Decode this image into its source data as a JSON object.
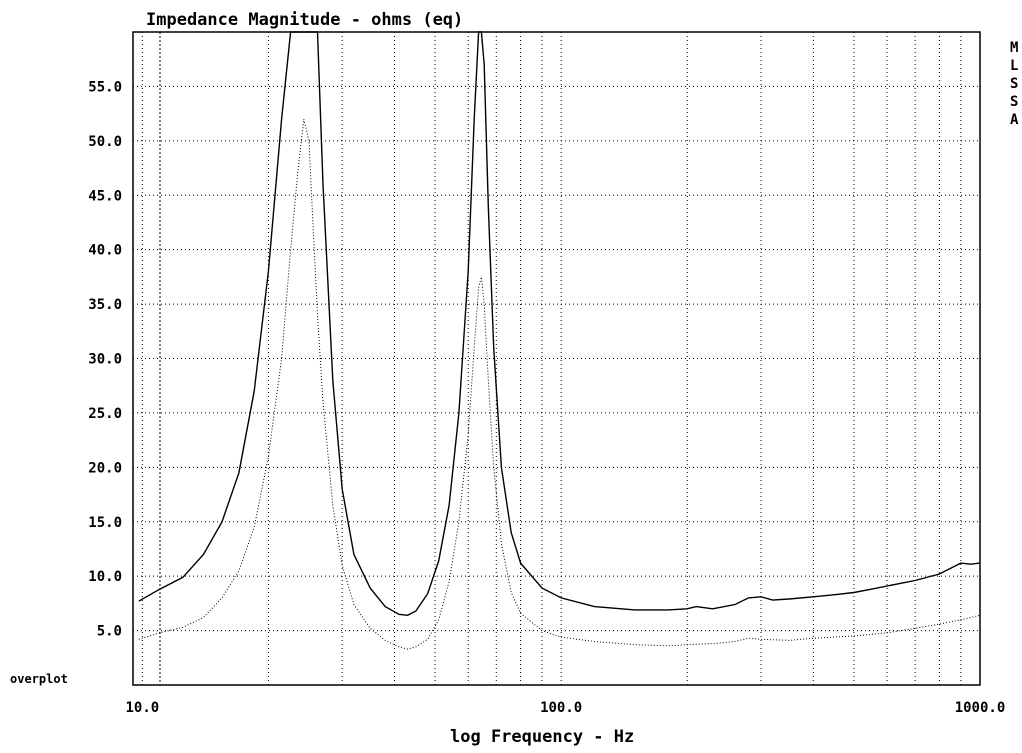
{
  "chart_data": {
    "type": "line",
    "title": "Impedance Magnitude - ohms (eq)",
    "xlabel": "log Frequency - Hz",
    "ylabel": "",
    "xscale": "log",
    "xlim": [
      9.5,
      1000
    ],
    "ylim": [
      0,
      60
    ],
    "grid": true,
    "xticks": [
      10,
      100,
      1000
    ],
    "xtick_labels": [
      "10.0",
      "100.0",
      "1000.0"
    ],
    "yticks": [
      5,
      10,
      15,
      20,
      25,
      30,
      35,
      40,
      45,
      50,
      55
    ],
    "ytick_labels": [
      "5.0",
      "10.0",
      "15.0",
      "20.0",
      "25.0",
      "30.0",
      "35.0",
      "40.0",
      "45.0",
      "50.0",
      "55.0"
    ],
    "bottom_label": "overplot",
    "side_legend": [
      "M",
      "L",
      "S",
      "S",
      "A"
    ],
    "series": [
      {
        "style": "solid",
        "color": "#000000",
        "x": [
          9.8,
          11,
          12.5,
          14,
          15.5,
          17,
          18.5,
          20,
          21.5,
          22.6,
          23.5,
          24.3,
          25,
          25.5,
          26.2,
          27,
          28.5,
          30,
          32,
          35,
          38,
          41,
          43,
          45,
          48,
          51,
          54,
          57,
          60,
          62,
          63.5,
          64.5,
          65.5,
          67,
          69,
          72,
          76,
          80,
          90,
          100,
          120,
          150,
          180,
          200,
          210,
          230,
          260,
          280,
          300,
          320,
          350,
          400,
          450,
          500,
          550,
          600,
          700,
          800,
          900,
          950,
          1000
        ],
        "y": [
          7.7,
          8.8,
          9.9,
          12,
          15,
          19.5,
          27,
          38,
          52,
          60,
          60,
          60,
          60,
          60,
          60,
          46,
          28,
          18,
          12,
          8.9,
          7.2,
          6.5,
          6.4,
          6.8,
          8.4,
          11.4,
          16.5,
          25,
          38,
          52,
          60,
          60,
          57,
          44,
          31,
          20,
          14,
          11.2,
          8.9,
          8,
          7.2,
          6.9,
          6.9,
          7,
          7.2,
          7,
          7.4,
          8,
          8.1,
          7.8,
          7.9,
          8.1,
          8.3,
          8.5,
          8.8,
          9.1,
          9.6,
          10.2,
          11.2,
          11.1,
          11.2
        ]
      },
      {
        "style": "dotted",
        "color": "#000000",
        "x": [
          9.8,
          11,
          12.5,
          14,
          15.5,
          17,
          18.5,
          20,
          21.5,
          22.6,
          23.5,
          24.3,
          25,
          25.5,
          26.2,
          27,
          28.5,
          30,
          32,
          35,
          38,
          41,
          43,
          45,
          48,
          51,
          54,
          57,
          60,
          62,
          63.5,
          64.5,
          65.5,
          67,
          69,
          72,
          76,
          80,
          90,
          100,
          120,
          150,
          180,
          200,
          230,
          260,
          280,
          300,
          350,
          400,
          500,
          600,
          700,
          800,
          900,
          950,
          1000
        ],
        "y": [
          4.2,
          4.8,
          5.3,
          6.2,
          8,
          10.5,
          14.5,
          21,
          30,
          40,
          47,
          52,
          50,
          43,
          34,
          26,
          16.5,
          11,
          7.4,
          5.2,
          4.1,
          3.5,
          3.3,
          3.5,
          4.2,
          6,
          9.5,
          15,
          23,
          31,
          36.5,
          37.5,
          35,
          28,
          20,
          13,
          8.5,
          6.6,
          5,
          4.4,
          4,
          3.7,
          3.6,
          3.7,
          3.8,
          4,
          4.3,
          4.2,
          4.1,
          4.3,
          4.5,
          4.8,
          5.2,
          5.6,
          6,
          6.2,
          6.4
        ]
      }
    ]
  }
}
